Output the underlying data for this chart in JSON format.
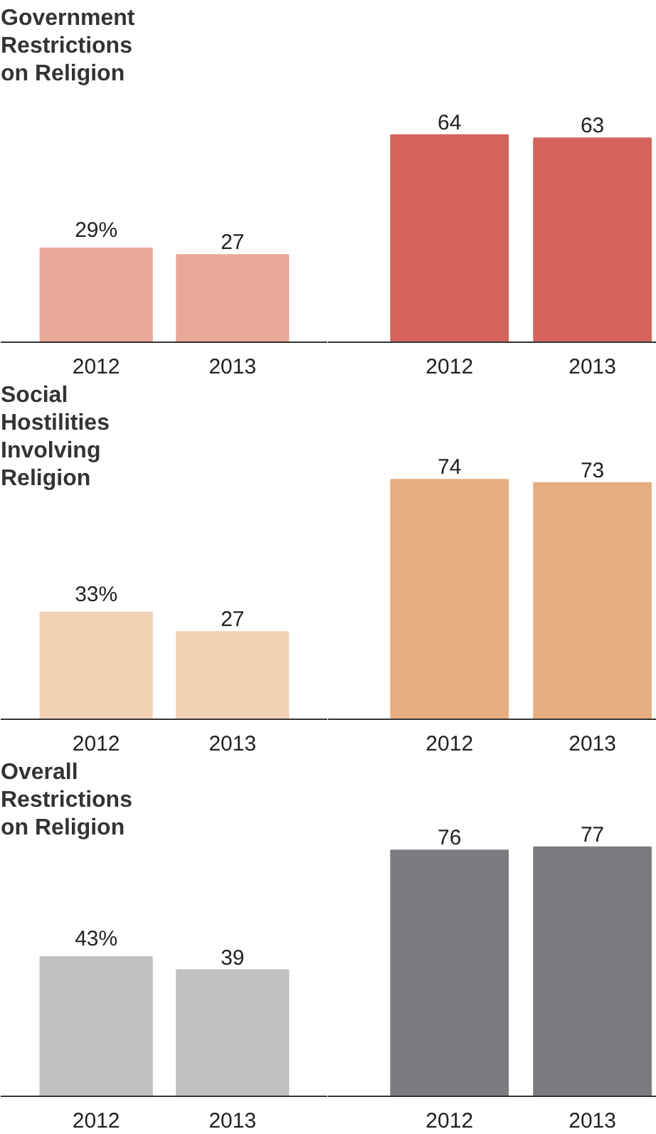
{
  "chart_data": [
    {
      "type": "bar",
      "title": "Government Restrictions on Religion",
      "categories": [
        "2012",
        "2013"
      ],
      "values": [
        29,
        27
      ],
      "colors": [
        "#e8a898",
        "#e8a898"
      ],
      "value_labels": [
        "29%",
        "27"
      ],
      "tick_labels": "x",
      "grid": false
    },
    {
      "type": "bar",
      "categories": [
        "2012",
        "2013"
      ],
      "values": [
        64,
        63
      ],
      "colors": [
        "#d4645a",
        "#d4645a"
      ],
      "data_labels": true,
      "tick_labels": "x",
      "grid": false
    },
    {
      "type": "bar",
      "title": "Social Hostilities Involving Religion",
      "categories": [
        "2012",
        "2013"
      ],
      "values": [
        33,
        27
      ],
      "colors": [
        "#f2d2b4",
        "#f2d2b4"
      ],
      "value_labels": [
        "33%",
        "27"
      ],
      "tick_labels": "x",
      "grid": false
    },
    {
      "type": "bar",
      "categories": [
        "2012",
        "2013"
      ],
      "values": [
        74,
        73
      ],
      "colors": [
        "#e4ae80",
        "#e4ae80"
      ],
      "data_labels": true,
      "tick_labels": "x",
      "grid": false
    },
    {
      "type": "bar",
      "title": "Overall Restrictions on Religion",
      "categories": [
        "2012",
        "2013"
      ],
      "values": [
        43,
        39
      ],
      "colors": [
        "#bfc0c2",
        "#bfc0c2"
      ],
      "value_labels": [
        "43%",
        "39"
      ],
      "tick_labels": "x",
      "grid": false
    },
    {
      "type": "bar",
      "categories": [
        "2012",
        "2013"
      ],
      "values": [
        76,
        77
      ],
      "colors": [
        "#7b7c80",
        "#7b7c80"
      ],
      "data_labels": true,
      "tick_labels": "x",
      "grid": false
    }
  ]
}
